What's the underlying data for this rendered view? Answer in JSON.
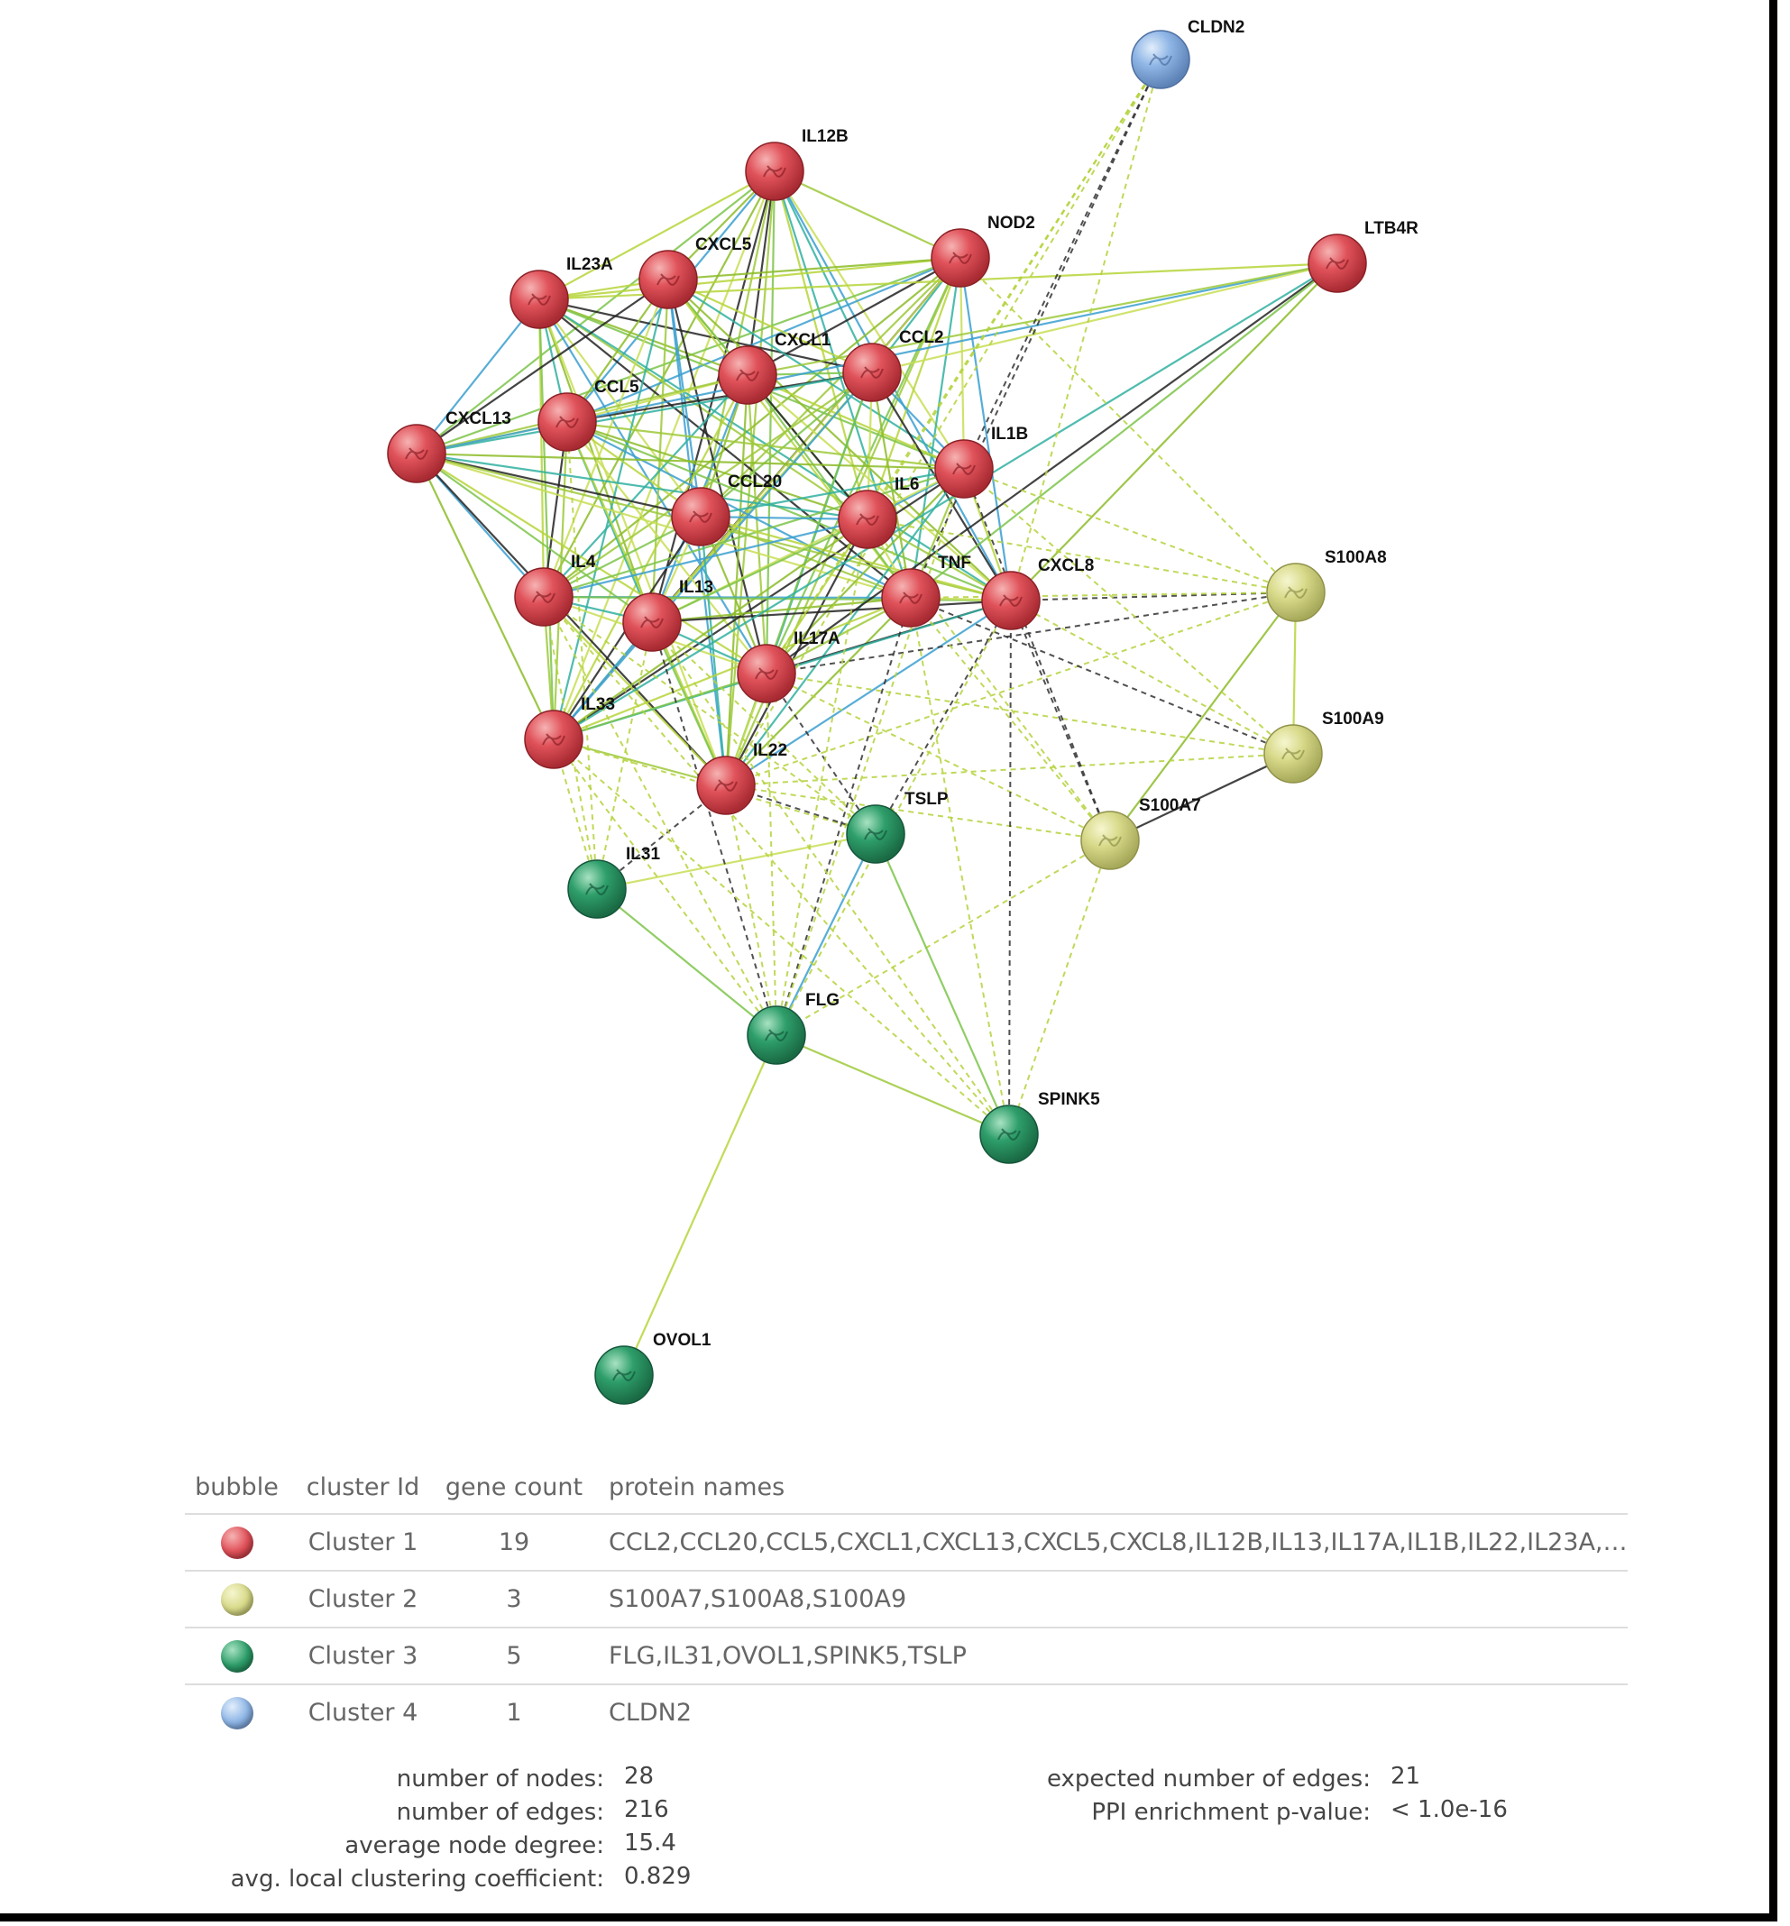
{
  "network": {
    "colors": {
      "cluster1": "#e0525a",
      "cluster2": "#d8da8a",
      "cluster3": "#2e9e6a",
      "cluster4": "#8fb6e6"
    },
    "nodes": [
      {
        "id": "IL12B",
        "label": "IL12B",
        "cluster": 1
      },
      {
        "id": "NOD2",
        "label": "NOD2",
        "cluster": 1
      },
      {
        "id": "LTB4R",
        "label": "LTB4R",
        "cluster": 1
      },
      {
        "id": "IL23A",
        "label": "IL23A",
        "cluster": 1
      },
      {
        "id": "CXCL5",
        "label": "CXCL5",
        "cluster": 1
      },
      {
        "id": "CXCL1",
        "label": "CXCL1",
        "cluster": 1
      },
      {
        "id": "CCL2",
        "label": "CCL2",
        "cluster": 1
      },
      {
        "id": "CCL5",
        "label": "CCL5",
        "cluster": 1
      },
      {
        "id": "CXCL13",
        "label": "CXCL13",
        "cluster": 1
      },
      {
        "id": "IL1B",
        "label": "IL1B",
        "cluster": 1
      },
      {
        "id": "CCL20",
        "label": "CCL20",
        "cluster": 1
      },
      {
        "id": "IL6",
        "label": "IL6",
        "cluster": 1
      },
      {
        "id": "IL4",
        "label": "IL4",
        "cluster": 1
      },
      {
        "id": "IL13",
        "label": "IL13",
        "cluster": 1
      },
      {
        "id": "TNF",
        "label": "TNF",
        "cluster": 1
      },
      {
        "id": "CXCL8",
        "label": "CXCL8",
        "cluster": 1
      },
      {
        "id": "IL17A",
        "label": "IL17A",
        "cluster": 1
      },
      {
        "id": "IL33",
        "label": "IL33",
        "cluster": 1
      },
      {
        "id": "IL22",
        "label": "IL22",
        "cluster": 1
      },
      {
        "id": "S100A8",
        "label": "S100A8",
        "cluster": 2
      },
      {
        "id": "S100A9",
        "label": "S100A9",
        "cluster": 2
      },
      {
        "id": "S100A7",
        "label": "S100A7",
        "cluster": 2
      },
      {
        "id": "TSLP",
        "label": "TSLP",
        "cluster": 3
      },
      {
        "id": "IL31",
        "label": "IL31",
        "cluster": 3
      },
      {
        "id": "FLG",
        "label": "FLG",
        "cluster": 3
      },
      {
        "id": "SPINK5",
        "label": "SPINK5",
        "cluster": 3
      },
      {
        "id": "OVOL1",
        "label": "OVOL1",
        "cluster": 3
      },
      {
        "id": "CLDN2",
        "label": "CLDN2",
        "cluster": 4
      }
    ]
  },
  "table": {
    "headers": {
      "bubble": "bubble",
      "cluster_id": "cluster Id",
      "gene_count": "gene count",
      "protein_names": "protein names"
    },
    "rows": [
      {
        "cluster": "Cluster 1",
        "count": "19",
        "names": "CCL2,CCL20,CCL5,CXCL1,CXCL13,CXCL5,CXCL8,IL12B,IL13,IL17A,IL1B,IL22,IL23A,I...",
        "color": "#e0525a"
      },
      {
        "cluster": "Cluster 2",
        "count": "3",
        "names": "S100A7,S100A8,S100A9",
        "color": "#d8da8a"
      },
      {
        "cluster": "Cluster 3",
        "count": "5",
        "names": "FLG,IL31,OVOL1,SPINK5,TSLP",
        "color": "#2e9e6a"
      },
      {
        "cluster": "Cluster 4",
        "count": "1",
        "names": "CLDN2",
        "color": "#8fb6e6"
      }
    ]
  },
  "stats": {
    "nodes_label": "number of nodes:",
    "nodes_value": "28",
    "edges_label": "number of edges:",
    "edges_value": "216",
    "degree_label": "average node degree:",
    "degree_value": "15.4",
    "clustering_label": "avg. local clustering coefficient:",
    "clustering_value": "0.829",
    "expected_label": "expected number of edges:",
    "expected_value": "21",
    "pvalue_label": "PPI enrichment p-value:",
    "pvalue_value": "< 1.0e-16"
  }
}
